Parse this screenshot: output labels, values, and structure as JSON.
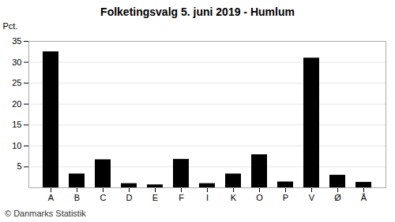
{
  "chart_data": {
    "type": "bar",
    "title": "Folketingsvalg 5. juni 2019 - Humlum",
    "categories": [
      "A",
      "B",
      "C",
      "D",
      "E",
      "F",
      "I",
      "K",
      "O",
      "P",
      "V",
      "Ø",
      "Å"
    ],
    "values": [
      32.5,
      3.3,
      6.7,
      1.0,
      0.7,
      6.8,
      1.0,
      3.3,
      7.9,
      1.4,
      31.0,
      3.0,
      1.3
    ],
    "ylabel": "Pct.",
    "ylim": [
      0,
      35
    ],
    "yticks": [
      5,
      10,
      15,
      20,
      25,
      30,
      35
    ],
    "grid": true,
    "caption": "© Danmarks Statistik"
  }
}
